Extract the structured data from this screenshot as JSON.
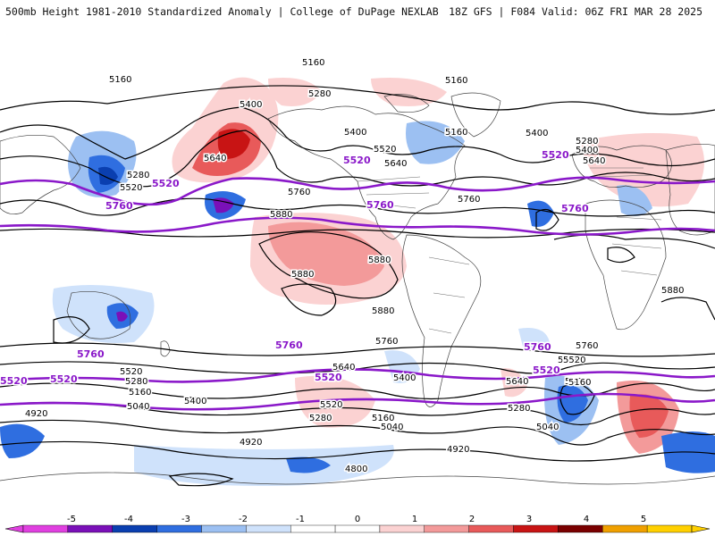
{
  "header": {
    "title_left": "500mb Height 1981-2010 Standardized Anomaly | College of DuPage NEXLAB",
    "title_right": "18Z GFS | F084 Valid: 06Z FRI MAR 28 2025"
  },
  "colors": {
    "contour": "#000000",
    "highlight_contour": "#8a18c9",
    "coastline": "#444444"
  },
  "contour_labels": {
    "black": [
      "5160",
      "5160",
      "5160",
      "5280",
      "5400",
      "5400",
      "5400",
      "5520",
      "5640",
      "5160",
      "5280",
      "5400",
      "5640",
      "5280",
      "5520",
      "5640",
      "5880",
      "5880",
      "5880",
      "5880",
      "5760",
      "5760",
      "5880",
      "5520",
      "5520",
      "5160",
      "5280",
      "5040",
      "5400",
      "4920",
      "4920",
      "4920",
      "4800",
      "5640",
      "5400",
      "5520",
      "5280",
      "5160",
      "5040",
      "5640",
      "5280",
      "5040",
      "5400",
      "5160",
      "5520",
      "5760",
      "5760"
    ],
    "purple": [
      "5520",
      "5520",
      "5520",
      "5520",
      "5760",
      "5760",
      "5760",
      "5760",
      "5760",
      "5520",
      "5520",
      "5760",
      "5520"
    ]
  },
  "colorbar": {
    "ticks": [
      "-5",
      "-4",
      "-3",
      "-2",
      "-1",
      "0",
      "1",
      "2",
      "3",
      "4",
      "5"
    ],
    "colors": [
      "#e040e0",
      "#7a10b8",
      "#0a3fb0",
      "#2f6ee0",
      "#9cc0f2",
      "#cfe2fb",
      "#ffffff",
      "#ffffff",
      "#fbd2d2",
      "#f39a9a",
      "#e85a5a",
      "#c81414",
      "#7a0000",
      "#f0a000",
      "#ffd000"
    ]
  }
}
